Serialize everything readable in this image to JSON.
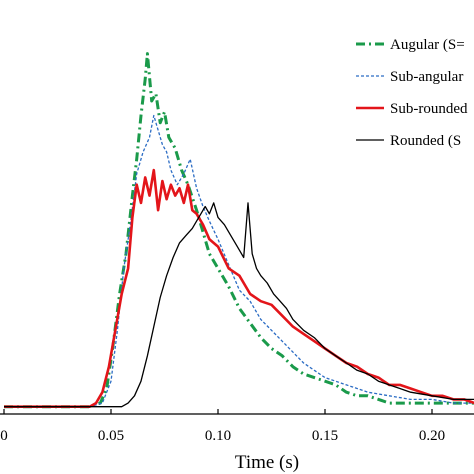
{
  "chart_data": {
    "type": "line",
    "title": "",
    "xlabel": "Time (s)",
    "ylabel": "",
    "xlim": [
      0.0,
      0.225
    ],
    "ylim": [
      0,
      1
    ],
    "grid": false,
    "legend_position": "top-right",
    "x_ticks": [
      {
        "value": 0.0,
        "label": "0"
      },
      {
        "value": 0.05,
        "label": "0.05"
      },
      {
        "value": 0.1,
        "label": "0.10"
      },
      {
        "value": 0.15,
        "label": "0.15"
      },
      {
        "value": 0.2,
        "label": "0.20"
      }
    ],
    "series": [
      {
        "name": "Augular (S=",
        "color": "#1a9a4a",
        "style": "dash-dot",
        "x": [
          0.0,
          0.03,
          0.04,
          0.045,
          0.048,
          0.051,
          0.054,
          0.057,
          0.06,
          0.062,
          0.064,
          0.066,
          0.067,
          0.069,
          0.071,
          0.073,
          0.075,
          0.077,
          0.08,
          0.083,
          0.086,
          0.09,
          0.093,
          0.096,
          0.1,
          0.105,
          0.11,
          0.115,
          0.12,
          0.125,
          0.13,
          0.135,
          0.14,
          0.145,
          0.15,
          0.155,
          0.16,
          0.165,
          0.17,
          0.175,
          0.18,
          0.19,
          0.2,
          0.21,
          0.225
        ],
        "y": [
          0.02,
          0.02,
          0.02,
          0.03,
          0.07,
          0.19,
          0.33,
          0.44,
          0.6,
          0.7,
          0.82,
          0.92,
          0.99,
          0.86,
          0.88,
          0.8,
          0.83,
          0.76,
          0.73,
          0.67,
          0.63,
          0.56,
          0.5,
          0.44,
          0.4,
          0.35,
          0.29,
          0.25,
          0.21,
          0.18,
          0.16,
          0.13,
          0.11,
          0.1,
          0.09,
          0.08,
          0.06,
          0.05,
          0.05,
          0.04,
          0.03,
          0.03,
          0.03,
          0.03,
          0.03
        ]
      },
      {
        "name": "Sub-angular",
        "color": "#2b6cc4",
        "style": "dashed",
        "x": [
          0.0,
          0.03,
          0.04,
          0.046,
          0.05,
          0.053,
          0.056,
          0.059,
          0.062,
          0.065,
          0.068,
          0.07,
          0.072,
          0.074,
          0.076,
          0.078,
          0.081,
          0.084,
          0.087,
          0.09,
          0.093,
          0.096,
          0.1,
          0.105,
          0.11,
          0.115,
          0.12,
          0.125,
          0.13,
          0.135,
          0.14,
          0.145,
          0.15,
          0.155,
          0.16,
          0.165,
          0.17,
          0.18,
          0.19,
          0.2,
          0.21,
          0.225
        ],
        "y": [
          0.02,
          0.02,
          0.02,
          0.03,
          0.09,
          0.23,
          0.4,
          0.52,
          0.66,
          0.72,
          0.76,
          0.82,
          0.78,
          0.74,
          0.72,
          0.67,
          0.63,
          0.66,
          0.7,
          0.62,
          0.57,
          0.53,
          0.48,
          0.41,
          0.34,
          0.31,
          0.26,
          0.23,
          0.2,
          0.17,
          0.14,
          0.12,
          0.1,
          0.09,
          0.08,
          0.07,
          0.06,
          0.05,
          0.04,
          0.04,
          0.03,
          0.03
        ]
      },
      {
        "name": "Sub-rounded",
        "color": "#e3151a",
        "style": "solid-thick",
        "x": [
          0.0,
          0.035,
          0.04,
          0.043,
          0.046,
          0.049,
          0.052,
          0.055,
          0.058,
          0.06,
          0.062,
          0.064,
          0.066,
          0.068,
          0.07,
          0.072,
          0.074,
          0.076,
          0.078,
          0.08,
          0.082,
          0.084,
          0.086,
          0.088,
          0.09,
          0.093,
          0.096,
          0.1,
          0.105,
          0.11,
          0.115,
          0.12,
          0.125,
          0.13,
          0.135,
          0.14,
          0.145,
          0.15,
          0.155,
          0.16,
          0.165,
          0.17,
          0.175,
          0.18,
          0.185,
          0.19,
          0.195,
          0.2,
          0.205,
          0.21,
          0.215,
          0.22,
          0.225
        ],
        "y": [
          0.02,
          0.02,
          0.02,
          0.03,
          0.06,
          0.13,
          0.23,
          0.33,
          0.4,
          0.54,
          0.63,
          0.58,
          0.65,
          0.6,
          0.67,
          0.56,
          0.64,
          0.59,
          0.63,
          0.6,
          0.62,
          0.58,
          0.63,
          0.56,
          0.55,
          0.52,
          0.48,
          0.46,
          0.4,
          0.38,
          0.33,
          0.31,
          0.3,
          0.27,
          0.24,
          0.22,
          0.2,
          0.18,
          0.16,
          0.14,
          0.13,
          0.11,
          0.1,
          0.08,
          0.08,
          0.07,
          0.06,
          0.05,
          0.05,
          0.04,
          0.04,
          0.03,
          0.03
        ]
      },
      {
        "name": "Rounded (S",
        "color": "#000000",
        "style": "solid-thin",
        "x": [
          0.0,
          0.055,
          0.058,
          0.061,
          0.064,
          0.067,
          0.07,
          0.073,
          0.076,
          0.079,
          0.082,
          0.085,
          0.088,
          0.09,
          0.092,
          0.094,
          0.096,
          0.098,
          0.1,
          0.103,
          0.106,
          0.109,
          0.112,
          0.114,
          0.116,
          0.118,
          0.12,
          0.123,
          0.126,
          0.129,
          0.132,
          0.135,
          0.14,
          0.145,
          0.15,
          0.155,
          0.16,
          0.165,
          0.17,
          0.175,
          0.18,
          0.185,
          0.19,
          0.2,
          0.21,
          0.225
        ],
        "y": [
          0.02,
          0.02,
          0.03,
          0.05,
          0.09,
          0.16,
          0.24,
          0.32,
          0.38,
          0.43,
          0.47,
          0.49,
          0.51,
          0.53,
          0.55,
          0.57,
          0.55,
          0.58,
          0.54,
          0.52,
          0.49,
          0.46,
          0.43,
          0.58,
          0.44,
          0.4,
          0.38,
          0.36,
          0.33,
          0.31,
          0.29,
          0.26,
          0.23,
          0.21,
          0.18,
          0.16,
          0.14,
          0.12,
          0.11,
          0.09,
          0.08,
          0.07,
          0.06,
          0.05,
          0.04,
          0.04
        ]
      }
    ]
  }
}
